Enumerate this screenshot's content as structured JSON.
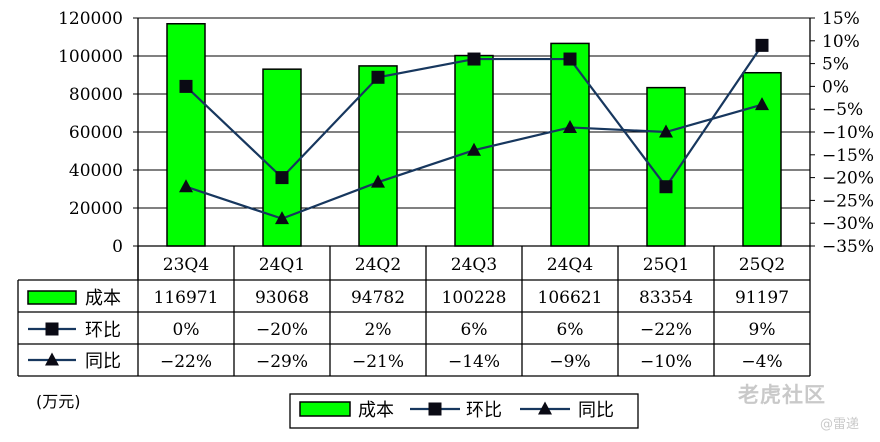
{
  "chart_data": {
    "type": "bar",
    "categories": [
      "23Q4",
      "24Q1",
      "24Q2",
      "24Q3",
      "24Q4",
      "25Q1",
      "25Q2"
    ],
    "series": [
      {
        "name": "成本",
        "type": "bar",
        "axis": "left",
        "values": [
          116971,
          93068,
          94782,
          100228,
          106621,
          83354,
          91197
        ],
        "table_labels": [
          "116971",
          "93068",
          "94782",
          "100228",
          "106621",
          "83354",
          "91197"
        ]
      },
      {
        "name": "环比",
        "type": "line",
        "marker": "square",
        "axis": "right",
        "values": [
          0,
          -20,
          2,
          6,
          6,
          -22,
          9
        ],
        "table_labels": [
          "0%",
          "-20%",
          "2%",
          "6%",
          "6%",
          "-22%",
          "9%"
        ]
      },
      {
        "name": "同比",
        "type": "line",
        "marker": "triangle",
        "axis": "right",
        "values": [
          -22,
          -29,
          -21,
          -14,
          -9,
          -10,
          -4
        ],
        "table_labels": [
          "-22%",
          "-29%",
          "-21%",
          "-14%",
          "-9%",
          "-10%",
          "-4%"
        ]
      }
    ],
    "y_left": {
      "ylim": [
        0,
        120000
      ],
      "ticks": [
        "0",
        "20000",
        "40000",
        "60000",
        "80000",
        "100000",
        "120000"
      ]
    },
    "y_right": {
      "ylim": [
        -35,
        15
      ],
      "ticks": [
        "-35%",
        "-30%",
        "-25%",
        "-20%",
        "-15%",
        "-10%",
        "-5%",
        "0%",
        "5%",
        "10%",
        "15%"
      ]
    },
    "unit_label": "(万元)",
    "legend_position": "bottom",
    "grid": true,
    "data_table": true
  },
  "colors": {
    "bar_fill": "#00ff00",
    "bar_stroke": "#000000",
    "line": "#17375e",
    "marker": "#0a0a14"
  },
  "watermark": {
    "text": "老虎社区",
    "sub": "@雷递"
  }
}
